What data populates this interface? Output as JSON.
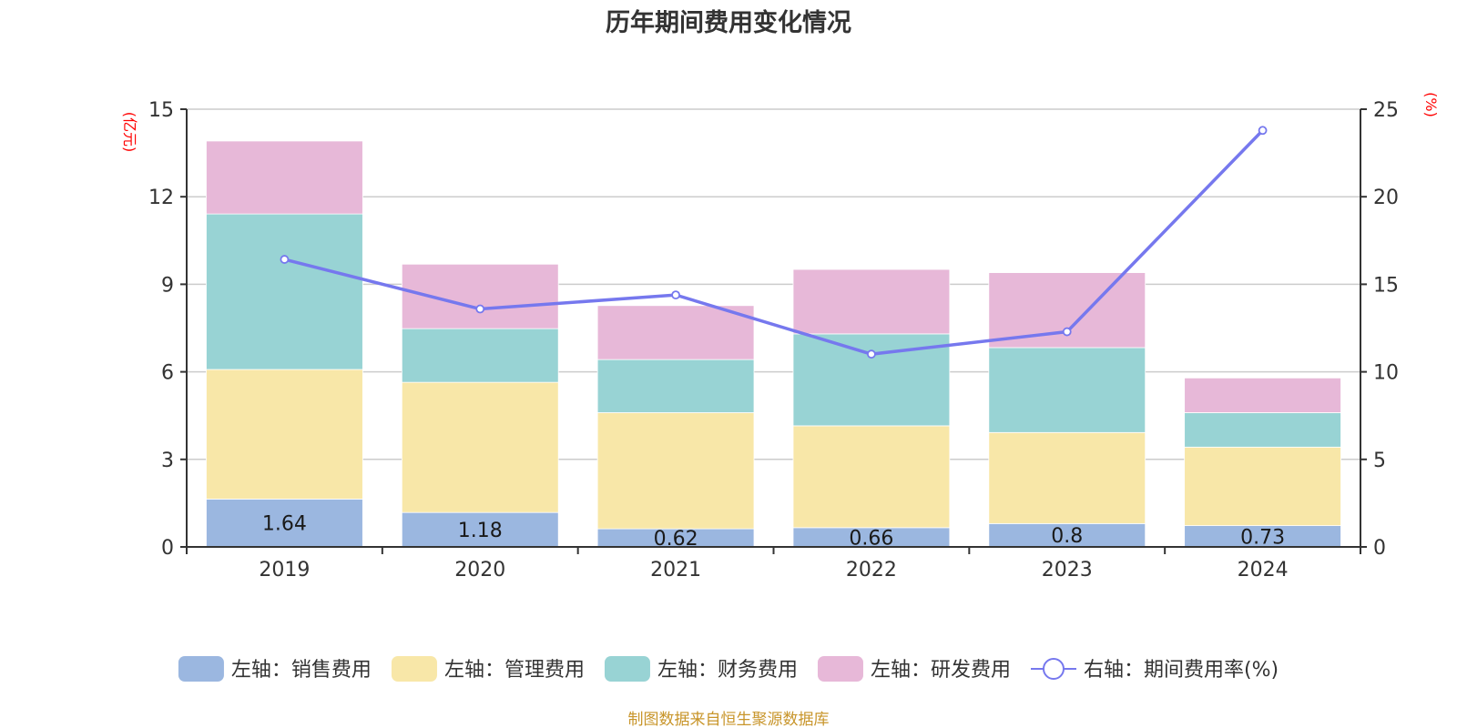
{
  "chart_data": {
    "type": "bar",
    "stacked": true,
    "title": "历年期间费用变化情况",
    "categories": [
      "2019",
      "2020",
      "2021",
      "2022",
      "2023",
      "2024"
    ],
    "y_left": {
      "unit_label": "(亿元)",
      "range": [
        0,
        15
      ],
      "ticks": [
        0,
        3,
        6,
        9,
        12,
        15
      ]
    },
    "y_right": {
      "unit_label": "(%)",
      "range": [
        0,
        25
      ],
      "ticks": [
        0,
        5,
        10,
        15,
        20,
        25
      ]
    },
    "grid": true,
    "legend_position": "bottom",
    "series": [
      {
        "name": "左轴：销售费用",
        "axis": "left",
        "type": "bar",
        "color": "#9bb7e0",
        "values": [
          1.64,
          1.18,
          0.62,
          0.66,
          0.8,
          0.73
        ],
        "labels": [
          "1.64",
          "1.18",
          "0.62",
          "0.66",
          "0.8",
          "0.73"
        ]
      },
      {
        "name": "左轴：管理费用",
        "axis": "left",
        "type": "bar",
        "color": "#f8e7a8",
        "values": [
          4.44,
          4.46,
          3.98,
          3.49,
          3.12,
          2.69
        ]
      },
      {
        "name": "左轴：财务费用",
        "axis": "left",
        "type": "bar",
        "color": "#98d3d4",
        "values": [
          5.33,
          1.84,
          1.82,
          3.15,
          2.91,
          1.18
        ]
      },
      {
        "name": "左轴：研发费用",
        "axis": "left",
        "type": "bar",
        "color": "#e7b8d8",
        "values": [
          2.5,
          2.21,
          1.85,
          2.21,
          2.57,
          1.19
        ]
      },
      {
        "name": "右轴：期间费用率(%)",
        "axis": "right",
        "type": "line",
        "color": "#7678ee",
        "values": [
          16.42,
          13.59,
          14.39,
          11.01,
          12.29,
          23.79
        ]
      }
    ]
  },
  "footer": {
    "source": "制图数据来自恒生聚源数据库"
  }
}
